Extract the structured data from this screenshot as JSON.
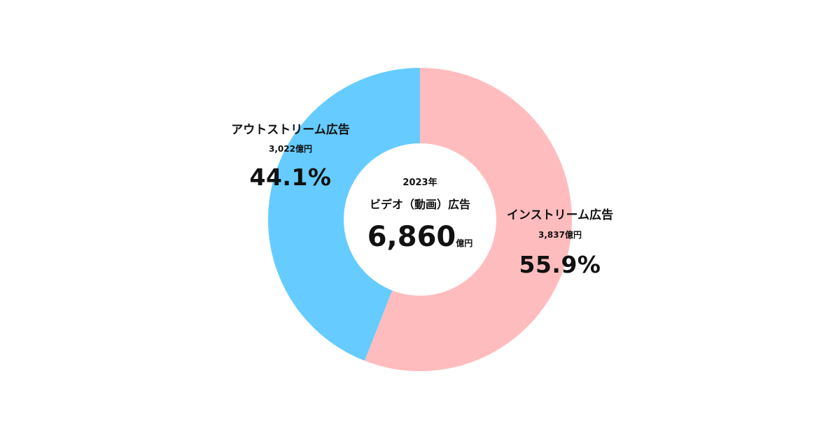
{
  "chart_data": {
    "type": "pie",
    "variant": "donut",
    "center": {
      "year": "2023年",
      "title": "ビデオ（動画）広告",
      "total": "6,860",
      "unit": "億円"
    },
    "slices": [
      {
        "label": "インストリーム広告",
        "amount": "3,837億円",
        "value": 3837,
        "percent_label": "55.9%",
        "percent": 55.9,
        "color": "#ffbcbe"
      },
      {
        "label": "アウトストリーム広告",
        "amount": "3,022億円",
        "value": 3022,
        "percent_label": "44.1%",
        "percent": 44.1,
        "color": "#66ccff"
      }
    ]
  }
}
